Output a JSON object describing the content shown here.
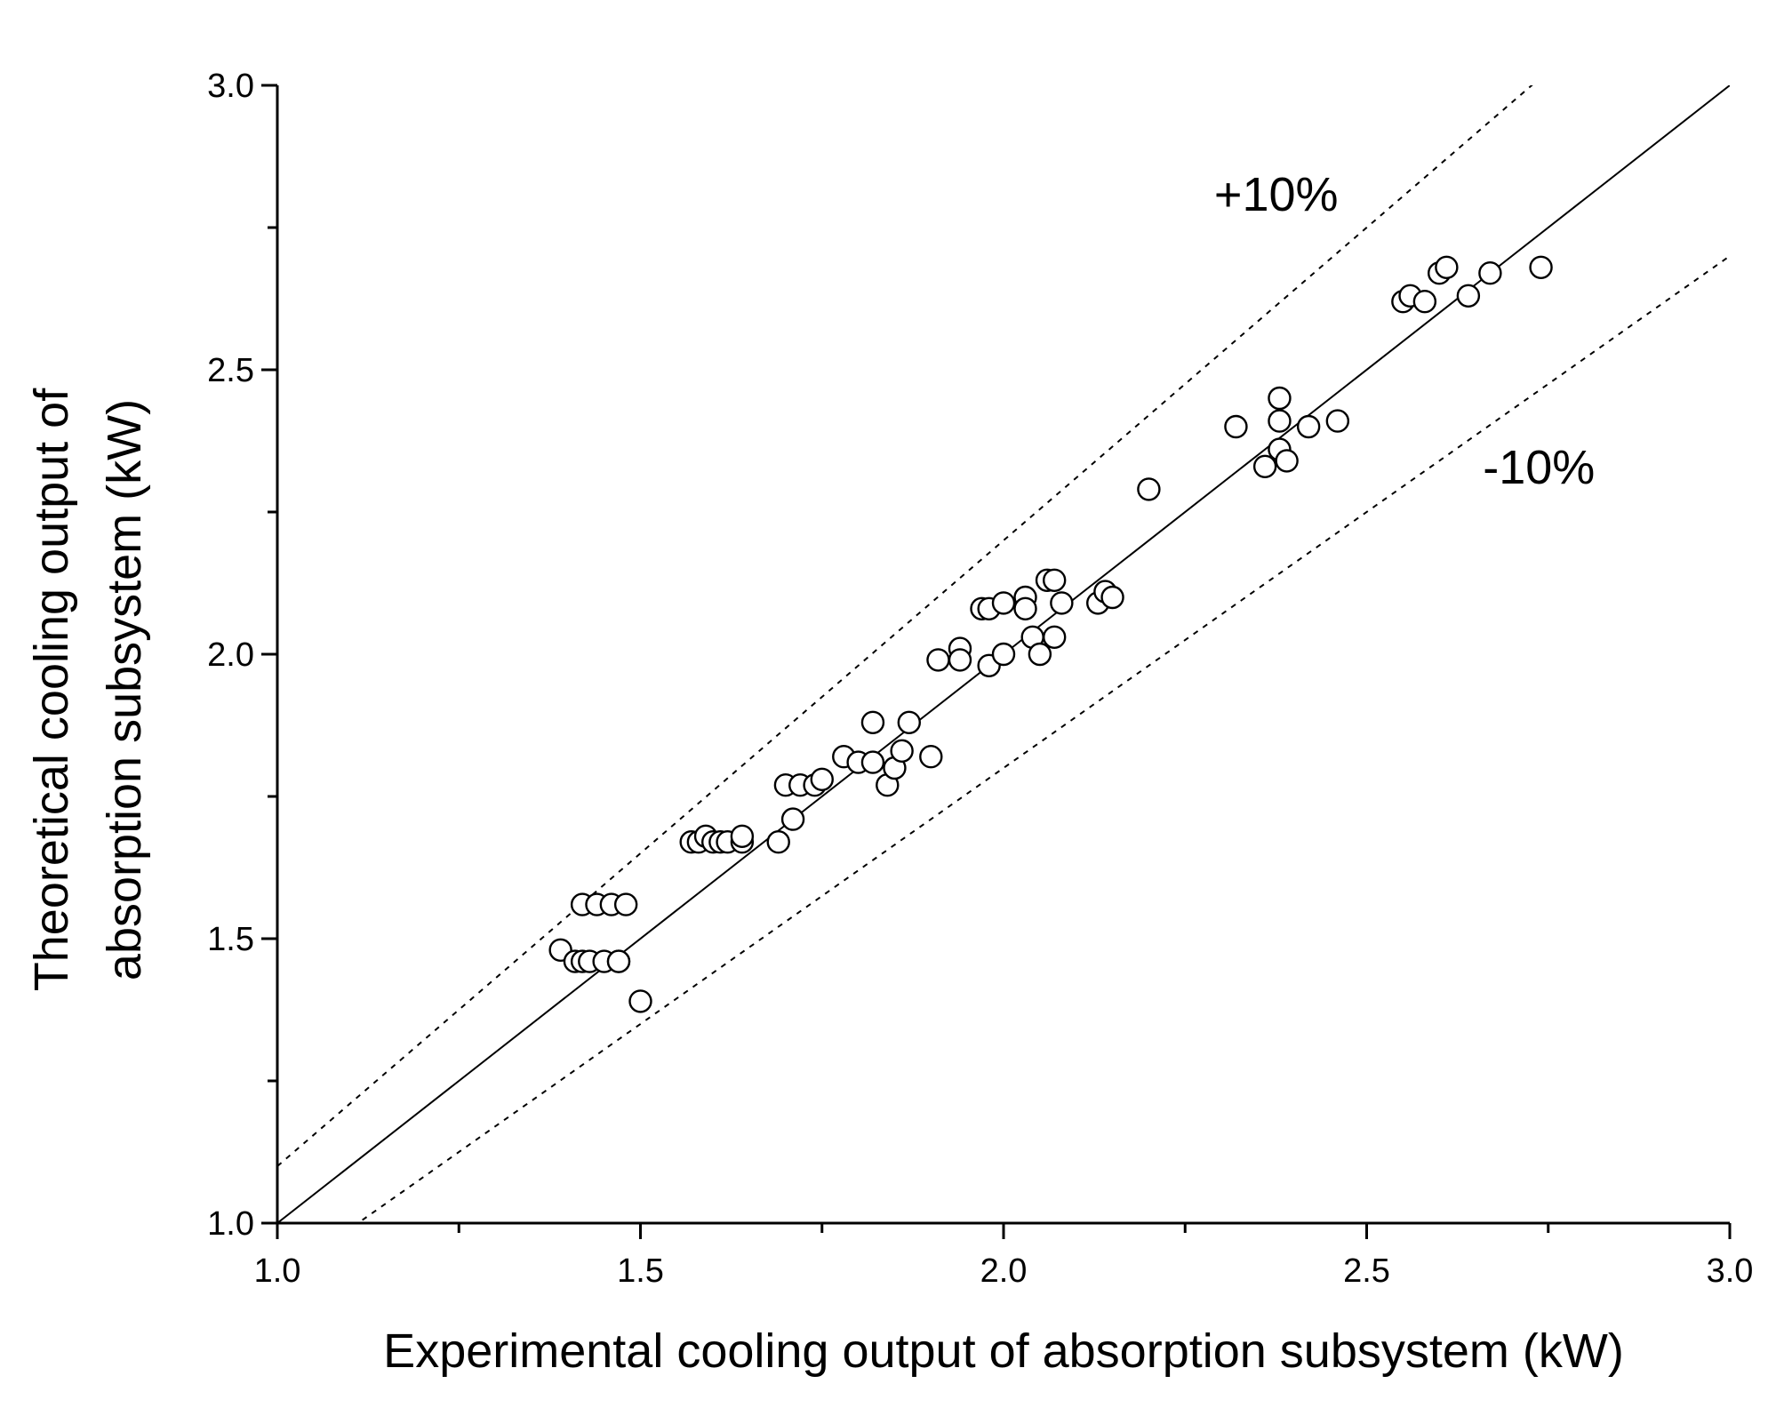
{
  "chart_data": {
    "type": "scatter",
    "xlabel": "Experimental cooling output of absorption subsystem (kW)",
    "ylabel": "Theoretical cooling output of absorption subsystem (kW)",
    "xlim": [
      1.0,
      3.0
    ],
    "ylim": [
      1.0,
      3.0
    ],
    "x_ticks": [
      "1.0",
      "1.5",
      "2.0",
      "2.5",
      "3.0"
    ],
    "y_ticks": [
      "1.0",
      "1.5",
      "2.0",
      "2.5",
      "3.0"
    ],
    "grid": false,
    "legend": "none",
    "marker": "open-circle",
    "annotations": [
      {
        "text": "+10%",
        "x": 2.29,
        "y": 2.78
      },
      {
        "text": "-10%",
        "x": 2.66,
        "y": 2.3
      }
    ],
    "reference_lines": [
      {
        "name": "1:1 line",
        "style": "solid",
        "slope": 1.0
      },
      {
        "name": "+10%",
        "style": "dashed",
        "slope": 1.1
      },
      {
        "name": "-10%",
        "style": "dashed",
        "slope": 0.9
      }
    ],
    "points": [
      [
        1.39,
        1.48
      ],
      [
        1.41,
        1.46
      ],
      [
        1.42,
        1.46
      ],
      [
        1.42,
        1.56
      ],
      [
        1.43,
        1.46
      ],
      [
        1.44,
        1.56
      ],
      [
        1.45,
        1.46
      ],
      [
        1.46,
        1.56
      ],
      [
        1.47,
        1.46
      ],
      [
        1.47,
        1.46
      ],
      [
        1.48,
        1.56
      ],
      [
        1.5,
        1.39
      ],
      [
        1.57,
        1.67
      ],
      [
        1.58,
        1.67
      ],
      [
        1.59,
        1.68
      ],
      [
        1.6,
        1.67
      ],
      [
        1.61,
        1.67
      ],
      [
        1.62,
        1.67
      ],
      [
        1.64,
        1.67
      ],
      [
        1.64,
        1.68
      ],
      [
        1.69,
        1.67
      ],
      [
        1.7,
        1.77
      ],
      [
        1.71,
        1.71
      ],
      [
        1.72,
        1.77
      ],
      [
        1.74,
        1.77
      ],
      [
        1.75,
        1.78
      ],
      [
        1.78,
        1.82
      ],
      [
        1.8,
        1.81
      ],
      [
        1.82,
        1.81
      ],
      [
        1.82,
        1.88
      ],
      [
        1.84,
        1.77
      ],
      [
        1.85,
        1.8
      ],
      [
        1.86,
        1.83
      ],
      [
        1.87,
        1.88
      ],
      [
        1.9,
        1.82
      ],
      [
        1.91,
        1.99
      ],
      [
        1.94,
        2.01
      ],
      [
        1.94,
        1.99
      ],
      [
        1.97,
        2.08
      ],
      [
        1.98,
        2.08
      ],
      [
        1.98,
        1.98
      ],
      [
        2.0,
        2.09
      ],
      [
        2.0,
        2.0
      ],
      [
        2.03,
        2.1
      ],
      [
        2.03,
        2.08
      ],
      [
        2.04,
        2.03
      ],
      [
        2.05,
        2.0
      ],
      [
        2.06,
        2.13
      ],
      [
        2.07,
        2.03
      ],
      [
        2.07,
        2.13
      ],
      [
        2.08,
        2.09
      ],
      [
        2.13,
        2.09
      ],
      [
        2.14,
        2.11
      ],
      [
        2.15,
        2.1
      ],
      [
        2.2,
        2.29
      ],
      [
        2.32,
        2.4
      ],
      [
        2.36,
        2.33
      ],
      [
        2.38,
        2.36
      ],
      [
        2.38,
        2.41
      ],
      [
        2.38,
        2.45
      ],
      [
        2.39,
        2.34
      ],
      [
        2.42,
        2.4
      ],
      [
        2.46,
        2.41
      ],
      [
        2.55,
        2.62
      ],
      [
        2.56,
        2.63
      ],
      [
        2.58,
        2.62
      ],
      [
        2.6,
        2.67
      ],
      [
        2.61,
        2.68
      ],
      [
        2.64,
        2.63
      ],
      [
        2.67,
        2.67
      ],
      [
        2.74,
        2.68
      ]
    ]
  }
}
